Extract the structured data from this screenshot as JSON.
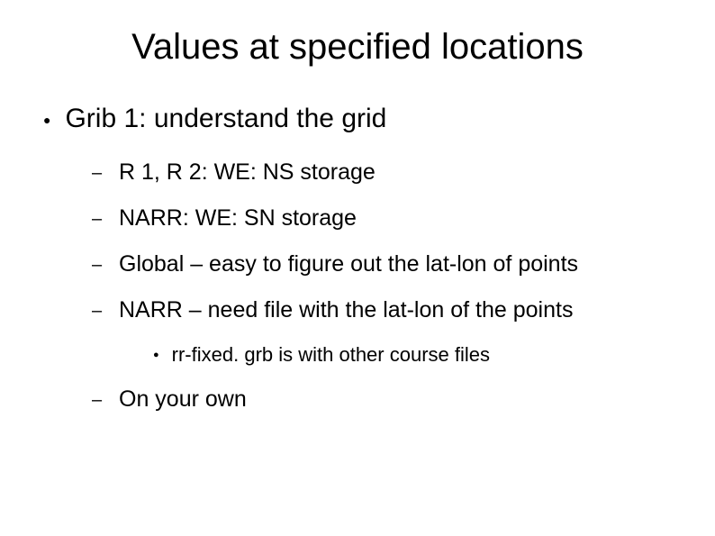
{
  "title": "Values at specified locations",
  "level1": {
    "text": "Grib 1: understand the grid"
  },
  "level2": {
    "item1": "R 1, R 2: WE: NS storage",
    "item2": "NARR: WE: SN storage",
    "item3": "Global – easy to figure out the lat-lon of points",
    "item4": "NARR – need file with the lat-lon of the points",
    "item5": "On your own"
  },
  "level3": {
    "item1": "rr-fixed. grb is with other course files"
  },
  "bullets": {
    "disc": "●",
    "dash": "–"
  },
  "colors": {
    "background": "#ffffff",
    "text": "#000000"
  }
}
